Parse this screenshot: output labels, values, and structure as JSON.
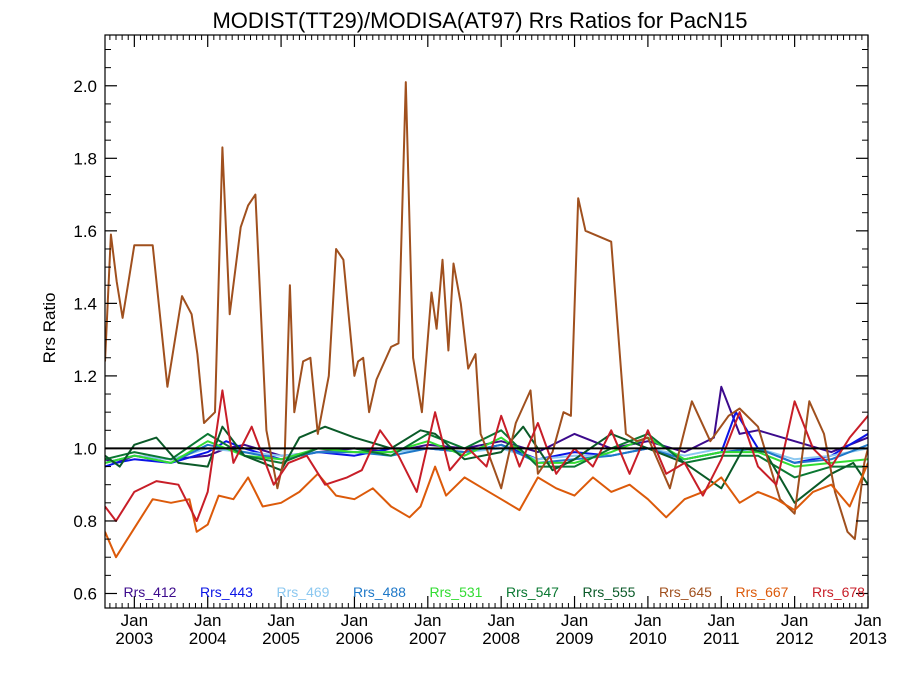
{
  "chart_data": {
    "type": "line",
    "title": "MODIST(TT29)/MODISA(AT97)  Rrs Ratios for PacN15",
    "xlabel": "",
    "ylabel": "Rrs Ratio",
    "xlim": [
      2002.6,
      2013.0
    ],
    "ylim": [
      0.56,
      2.14
    ],
    "grid": false,
    "legend_position": "bottom inside plot",
    "reference_line": {
      "y": 1.0,
      "color": "#000000"
    },
    "x_ticks": [
      {
        "value": 2003,
        "label": [
          "Jan",
          "2003"
        ]
      },
      {
        "value": 2004,
        "label": [
          "Jan",
          "2004"
        ]
      },
      {
        "value": 2005,
        "label": [
          "Jan",
          "2005"
        ]
      },
      {
        "value": 2006,
        "label": [
          "Jan",
          "2006"
        ]
      },
      {
        "value": 2007,
        "label": [
          "Jan",
          "2007"
        ]
      },
      {
        "value": 2008,
        "label": [
          "Jan",
          "2008"
        ]
      },
      {
        "value": 2009,
        "label": [
          "Jan",
          "2009"
        ]
      },
      {
        "value": 2010,
        "label": [
          "Jan",
          "2010"
        ]
      },
      {
        "value": 2011,
        "label": [
          "Jan",
          "2011"
        ]
      },
      {
        "value": 2012,
        "label": [
          "Jan",
          "2012"
        ]
      },
      {
        "value": 2013,
        "label": [
          "Jan",
          "2013"
        ]
      }
    ],
    "y_ticks": [
      {
        "value": 0.6,
        "label": "0.6"
      },
      {
        "value": 0.8,
        "label": "0.8"
      },
      {
        "value": 1.0,
        "label": "1.0"
      },
      {
        "value": 1.2,
        "label": "1.2"
      },
      {
        "value": 1.4,
        "label": "1.4"
      },
      {
        "value": 1.6,
        "label": "1.6"
      },
      {
        "value": 1.8,
        "label": "1.8"
      },
      {
        "value": 2.0,
        "label": "2.0"
      }
    ],
    "series": [
      {
        "name": "Rrs_412",
        "color": "#3c0a8c",
        "x": [
          2002.6,
          2002.75,
          2003.0,
          2003.5,
          2004.0,
          2004.25,
          2004.5,
          2005.0,
          2005.5,
          2006.0,
          2006.5,
          2007.0,
          2007.5,
          2008.0,
          2008.5,
          2009.0,
          2009.5,
          2010.0,
          2010.5,
          2010.9,
          2011.0,
          2011.25,
          2011.5,
          2012.0,
          2012.5,
          2013.0
        ],
        "y": [
          0.97,
          0.96,
          0.98,
          0.97,
          0.98,
          1.0,
          1.01,
          0.98,
          0.99,
          1.0,
          0.99,
          1.01,
          1.0,
          1.02,
          0.99,
          1.04,
          1.0,
          1.02,
          0.99,
          1.03,
          1.17,
          1.04,
          1.05,
          1.02,
          0.99,
          1.03
        ]
      },
      {
        "name": "Rrs_443",
        "color": "#0a14e6",
        "x": [
          2002.6,
          2002.75,
          2003.0,
          2003.5,
          2004.0,
          2004.25,
          2004.5,
          2005.0,
          2005.5,
          2006.0,
          2006.5,
          2007.0,
          2007.5,
          2008.0,
          2008.5,
          2009.0,
          2009.5,
          2010.0,
          2010.5,
          2011.0,
          2011.2,
          2011.5,
          2012.0,
          2012.5,
          2013.0
        ],
        "y": [
          0.95,
          0.96,
          0.97,
          0.96,
          0.99,
          1.02,
          1.0,
          0.97,
          0.99,
          0.98,
          1.0,
          1.0,
          0.99,
          1.01,
          0.97,
          0.99,
          0.98,
          1.0,
          0.97,
          0.99,
          1.1,
          1.0,
          0.96,
          0.98,
          1.04
        ]
      },
      {
        "name": "Rrs_469",
        "color": "#8cc8f0",
        "x": [
          2002.6,
          2003.0,
          2003.5,
          2004.0,
          2004.5,
          2005.0,
          2005.5,
          2006.0,
          2006.5,
          2007.0,
          2007.5,
          2008.0,
          2008.5,
          2009.0,
          2009.5,
          2010.0,
          2010.5,
          2011.0,
          2011.5,
          2012.0,
          2012.5,
          2013.0
        ],
        "y": [
          0.96,
          0.98,
          0.97,
          1.0,
          0.99,
          0.98,
          0.99,
          0.99,
          0.99,
          1.0,
          0.99,
          1.0,
          0.97,
          0.98,
          0.98,
          1.0,
          0.98,
          1.0,
          1.0,
          0.97,
          0.98,
          1.0
        ]
      },
      {
        "name": "Rrs_488",
        "color": "#1e78c8",
        "x": [
          2002.6,
          2003.0,
          2003.5,
          2004.0,
          2004.5,
          2005.0,
          2005.5,
          2006.0,
          2006.5,
          2007.0,
          2007.5,
          2008.0,
          2008.5,
          2009.0,
          2009.5,
          2010.0,
          2010.5,
          2011.0,
          2011.5,
          2012.0,
          2012.5,
          2013.0
        ],
        "y": [
          0.96,
          0.98,
          0.96,
          1.01,
          0.99,
          0.97,
          0.99,
          0.99,
          0.98,
          1.0,
          0.99,
          1.01,
          0.96,
          0.97,
          0.98,
          1.0,
          0.97,
          0.99,
          1.0,
          0.96,
          0.97,
          1.01
        ]
      },
      {
        "name": "Rrs_531",
        "color": "#32dc32",
        "x": [
          2002.6,
          2003.0,
          2003.5,
          2004.0,
          2004.5,
          2005.0,
          2005.5,
          2006.0,
          2006.5,
          2007.0,
          2007.5,
          2008.0,
          2008.5,
          2009.0,
          2009.5,
          2010.0,
          2010.5,
          2011.0,
          2011.5,
          2012.0,
          2012.5,
          2013.0
        ],
        "y": [
          0.96,
          0.98,
          0.96,
          1.02,
          0.98,
          0.97,
          1.0,
          0.99,
          0.99,
          1.02,
          0.98,
          1.03,
          0.96,
          0.96,
          0.99,
          1.03,
          0.97,
          0.99,
          0.99,
          0.95,
          0.96,
          0.97
        ]
      },
      {
        "name": "Rrs_547",
        "color": "#0a7832",
        "x": [
          2002.6,
          2003.0,
          2003.5,
          2004.0,
          2004.5,
          2005.0,
          2005.5,
          2006.0,
          2006.5,
          2007.0,
          2007.5,
          2008.0,
          2008.5,
          2009.0,
          2009.5,
          2010.0,
          2010.5,
          2011.0,
          2011.5,
          2012.0,
          2012.5,
          2013.0
        ],
        "y": [
          0.97,
          0.99,
          0.97,
          1.04,
          0.98,
          0.96,
          1.0,
          1.0,
          0.98,
          1.04,
          1.0,
          1.05,
          0.95,
          0.95,
          1.0,
          1.04,
          0.96,
          0.98,
          0.98,
          0.92,
          0.95,
          0.95
        ]
      },
      {
        "name": "Rrs_555",
        "color": "#0a5a28",
        "x": [
          2002.6,
          2002.8,
          2003.0,
          2003.3,
          2003.6,
          2004.0,
          2004.2,
          2004.5,
          2005.0,
          2005.25,
          2005.6,
          2006.0,
          2006.5,
          2006.9,
          2007.1,
          2007.5,
          2008.0,
          2008.3,
          2008.7,
          2009.0,
          2009.5,
          2010.0,
          2010.5,
          2011.0,
          2011.3,
          2011.6,
          2012.0,
          2012.5,
          2012.8,
          2013.0
        ],
        "y": [
          0.98,
          0.95,
          1.01,
          1.03,
          0.96,
          0.95,
          1.06,
          0.98,
          0.94,
          1.03,
          1.06,
          1.03,
          1.0,
          1.05,
          1.04,
          0.97,
          0.99,
          1.06,
          0.94,
          0.97,
          1.04,
          1.0,
          0.96,
          0.89,
          1.0,
          0.99,
          0.85,
          0.93,
          0.96,
          0.9
        ]
      },
      {
        "name": "Rrs_645",
        "color": "#a0501e",
        "x": [
          2002.6,
          2002.68,
          2002.76,
          2002.84,
          2002.92,
          2003.0,
          2003.25,
          2003.45,
          2003.65,
          2003.78,
          2003.86,
          2003.95,
          2004.1,
          2004.2,
          2004.3,
          2004.45,
          2004.55,
          2004.65,
          2004.8,
          2004.95,
          2005.05,
          2005.12,
          2005.18,
          2005.3,
          2005.4,
          2005.5,
          2005.65,
          2005.75,
          2005.85,
          2006.0,
          2006.05,
          2006.12,
          2006.2,
          2006.3,
          2006.5,
          2006.6,
          2006.7,
          2006.8,
          2006.92,
          2007.05,
          2007.12,
          2007.2,
          2007.28,
          2007.35,
          2007.45,
          2007.55,
          2007.65,
          2007.72,
          2007.8,
          2008.0,
          2008.2,
          2008.4,
          2008.5,
          2008.7,
          2008.85,
          2008.95,
          2009.05,
          2009.15,
          2009.5,
          2009.7,
          2009.85,
          2010.0,
          2010.3,
          2010.6,
          2010.85,
          2011.1,
          2011.25,
          2011.5,
          2011.8,
          2012.0,
          2012.2,
          2012.4,
          2012.55,
          2012.72,
          2012.82,
          2012.95,
          2013.0
        ],
        "y": [
          1.24,
          1.59,
          1.46,
          1.36,
          1.46,
          1.56,
          1.56,
          1.17,
          1.42,
          1.37,
          1.26,
          1.07,
          1.1,
          1.83,
          1.37,
          1.61,
          1.67,
          1.7,
          1.05,
          0.89,
          0.98,
          1.45,
          1.1,
          1.24,
          1.25,
          1.04,
          1.2,
          1.55,
          1.52,
          1.2,
          1.24,
          1.25,
          1.1,
          1.19,
          1.28,
          1.29,
          2.01,
          1.25,
          1.1,
          1.43,
          1.33,
          1.52,
          1.27,
          1.51,
          1.4,
          1.22,
          1.26,
          1.04,
          1.0,
          0.89,
          1.07,
          1.16,
          0.93,
          0.99,
          1.1,
          1.09,
          1.69,
          1.6,
          1.57,
          1.04,
          1.02,
          1.03,
          0.89,
          1.13,
          1.02,
          1.09,
          1.11,
          1.06,
          0.86,
          0.82,
          1.13,
          1.04,
          0.88,
          0.77,
          0.75,
          0.96,
          1.0
        ]
      },
      {
        "name": "Rrs_667",
        "color": "#dc5a0a",
        "x": [
          2002.6,
          2002.75,
          2003.0,
          2003.25,
          2003.5,
          2003.75,
          2003.85,
          2004.0,
          2004.15,
          2004.35,
          2004.55,
          2004.75,
          2005.0,
          2005.25,
          2005.5,
          2005.75,
          2006.0,
          2006.25,
          2006.5,
          2006.75,
          2006.9,
          2007.1,
          2007.25,
          2007.5,
          2007.75,
          2008.0,
          2008.25,
          2008.5,
          2008.75,
          2009.0,
          2009.25,
          2009.5,
          2009.75,
          2010.0,
          2010.25,
          2010.5,
          2010.75,
          2011.0,
          2011.25,
          2011.5,
          2011.75,
          2012.0,
          2012.25,
          2012.5,
          2012.75,
          2013.0
        ],
        "y": [
          0.77,
          0.7,
          0.78,
          0.86,
          0.85,
          0.86,
          0.77,
          0.79,
          0.87,
          0.86,
          0.92,
          0.84,
          0.85,
          0.88,
          0.93,
          0.87,
          0.86,
          0.89,
          0.84,
          0.81,
          0.84,
          0.95,
          0.87,
          0.92,
          0.89,
          0.86,
          0.83,
          0.92,
          0.89,
          0.87,
          0.92,
          0.88,
          0.9,
          0.86,
          0.81,
          0.86,
          0.88,
          0.92,
          0.85,
          0.88,
          0.86,
          0.83,
          0.88,
          0.9,
          0.84,
          0.96
        ]
      },
      {
        "name": "Rrs_678",
        "color": "#c81e28",
        "x": [
          2002.6,
          2002.75,
          2003.0,
          2003.3,
          2003.6,
          2003.85,
          2004.0,
          2004.2,
          2004.35,
          2004.6,
          2004.9,
          2005.1,
          2005.35,
          2005.6,
          2005.9,
          2006.1,
          2006.35,
          2006.6,
          2006.85,
          2007.1,
          2007.3,
          2007.55,
          2007.8,
          2008.0,
          2008.25,
          2008.5,
          2008.75,
          2009.0,
          2009.25,
          2009.5,
          2009.75,
          2010.0,
          2010.25,
          2010.5,
          2010.75,
          2011.0,
          2011.25,
          2011.5,
          2011.75,
          2012.0,
          2012.25,
          2012.5,
          2012.75,
          2013.0
        ],
        "y": [
          0.84,
          0.8,
          0.88,
          0.91,
          0.9,
          0.8,
          0.88,
          1.16,
          0.96,
          1.06,
          0.9,
          0.96,
          0.98,
          0.9,
          0.92,
          0.94,
          1.05,
          0.98,
          0.88,
          1.1,
          0.94,
          1.0,
          0.95,
          1.09,
          0.95,
          1.07,
          0.93,
          1.0,
          0.95,
          1.05,
          0.93,
          1.05,
          0.93,
          0.96,
          0.87,
          0.97,
          1.1,
          0.95,
          0.9,
          1.13,
          1.0,
          0.95,
          1.03,
          1.09
        ]
      }
    ]
  }
}
